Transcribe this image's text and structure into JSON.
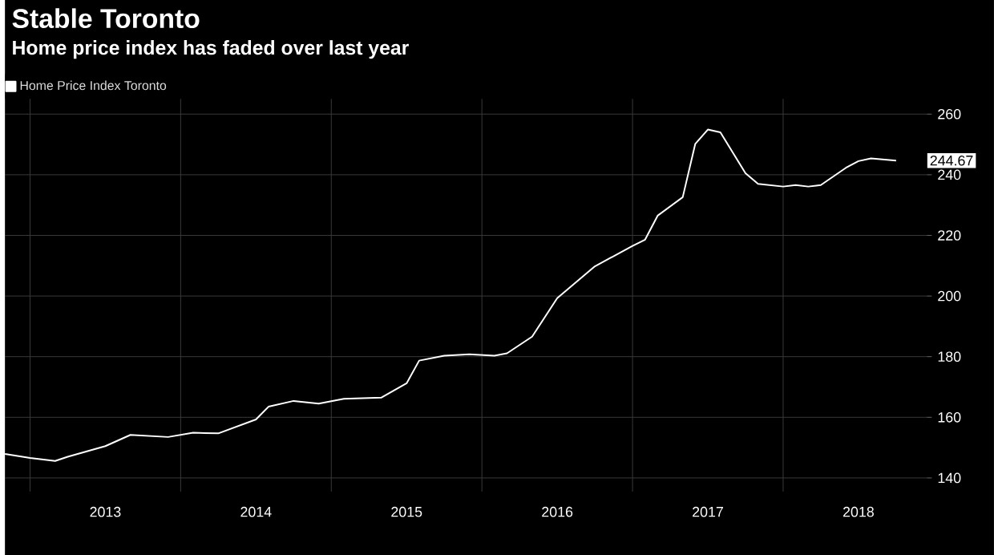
{
  "chart_data": {
    "type": "line",
    "title": "Stable Toronto",
    "subtitle": "Home price index has faded over last year",
    "x": [
      "2012-11",
      "2013-01",
      "2013-03",
      "2013-04",
      "2013-07",
      "2013-09",
      "2013-12",
      "2014-02",
      "2014-04",
      "2014-07",
      "2014-08",
      "2014-10",
      "2014-12",
      "2015-02",
      "2015-05",
      "2015-07",
      "2015-08",
      "2015-10",
      "2015-12",
      "2016-02",
      "2016-03",
      "2016-05",
      "2016-07",
      "2016-10",
      "2017-01",
      "2017-02",
      "2017-03",
      "2017-05",
      "2017-06",
      "2017-07",
      "2017-08",
      "2017-10",
      "2017-11",
      "2018-01",
      "2018-02",
      "2018-03",
      "2018-04",
      "2018-06",
      "2018-07",
      "2018-08",
      "2018-10"
    ],
    "series": [
      {
        "name": "Home Price Index Toronto",
        "color": "#ffffff",
        "values": [
          147.9,
          146.6,
          145.6,
          147.0,
          150.5,
          154.2,
          153.5,
          154.9,
          154.7,
          159.3,
          163.5,
          165.4,
          164.5,
          166.1,
          166.5,
          171.2,
          178.7,
          180.3,
          180.8,
          180.3,
          181.1,
          186.6,
          199.3,
          209.8,
          216.5,
          218.6,
          226.5,
          232.6,
          250.2,
          254.9,
          254.0,
          240.5,
          237.0,
          236.1,
          236.6,
          236.1,
          236.6,
          242.3,
          244.5,
          245.4,
          244.67
        ]
      }
    ],
    "xlim": [
      "2012-11",
      "2018-12-15"
    ],
    "xticks": [
      {
        "value": "2013-01",
        "label": null
      },
      {
        "value": "2013-07-01",
        "label": "2013"
      },
      {
        "value": "2014-01",
        "label": null
      },
      {
        "value": "2014-07-01",
        "label": "2014"
      },
      {
        "value": "2015-01",
        "label": null
      },
      {
        "value": "2015-07-01",
        "label": "2015"
      },
      {
        "value": "2016-01",
        "label": null
      },
      {
        "value": "2016-07-01",
        "label": "2016"
      },
      {
        "value": "2017-01",
        "label": null
      },
      {
        "value": "2017-07-01",
        "label": "2017"
      },
      {
        "value": "2018-01",
        "label": null
      },
      {
        "value": "2018-07-01",
        "label": "2018"
      }
    ],
    "ylim": [
      135.5,
      265
    ],
    "yticks": [
      140,
      160,
      180,
      200,
      220,
      240,
      260
    ],
    "annotations": [
      {
        "text": "244.67",
        "x": "2018-10",
        "y": 244.67
      }
    ],
    "grid": true,
    "legend": "top left"
  }
}
